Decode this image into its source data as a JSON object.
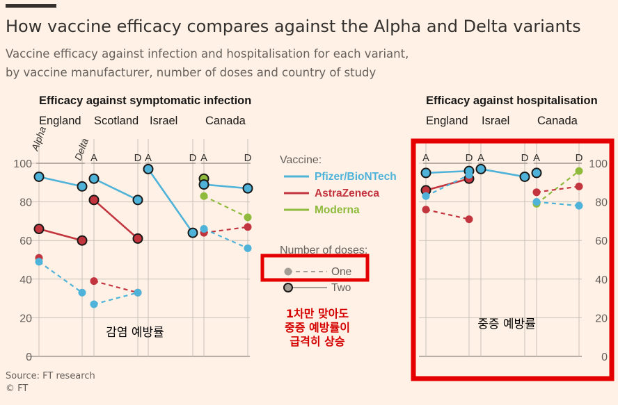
{
  "title": "How vaccine efficacy compares against the Alpha and Delta variants",
  "subtitle_line1": "Vaccine efficacy against infection and hospitalisation for each variant,",
  "subtitle_line2": "by vaccine manufacturer, number of doses and country of study",
  "source": "Source: FT research",
  "copyright": "© FT",
  "overlay": {
    "infection_note": "감염 예방률",
    "center_note_lines": [
      "1차만 맞아도",
      "중증 예방률이",
      "급격히 상승"
    ],
    "hosp_note": "중증 예방률",
    "box_color": "#e50000",
    "note_color": "#d40000"
  },
  "colors": {
    "pfizer": "#4fb3d9",
    "astrazeneca": "#c2343e",
    "moderna": "#8fba3d",
    "one_dose_marker": "#a59e97",
    "grid": "#c9c1b8"
  },
  "chart_data": [
    {
      "type": "line",
      "title": "Efficacy against symptomatic infection",
      "ylim": [
        0,
        100
      ],
      "yticks": [
        0,
        20,
        40,
        60,
        80,
        100
      ],
      "panels": [
        {
          "country": "England",
          "x_labels": [
            "Alpha",
            "Delta"
          ],
          "x_label_style": "rotated",
          "series": [
            {
              "vaccine": "Pfizer/BioNTech",
              "doses": "Two",
              "values": [
                93,
                88
              ]
            },
            {
              "vaccine": "AstraZeneca",
              "doses": "Two",
              "values": [
                66,
                60
              ]
            },
            {
              "vaccine": "AstraZeneca",
              "doses": "One",
              "values": [
                51,
                null
              ]
            },
            {
              "vaccine": "Pfizer/BioNTech",
              "doses": "One",
              "values": [
                49,
                33
              ]
            }
          ]
        },
        {
          "country": "Scotland",
          "x_labels": [
            "A",
            "D"
          ],
          "series": [
            {
              "vaccine": "Pfizer/BioNTech",
              "doses": "Two",
              "values": [
                92,
                81
              ]
            },
            {
              "vaccine": "AstraZeneca",
              "doses": "Two",
              "values": [
                81,
                61
              ]
            },
            {
              "vaccine": "AstraZeneca",
              "doses": "One",
              "values": [
                39,
                33
              ]
            },
            {
              "vaccine": "Pfizer/BioNTech",
              "doses": "One",
              "values": [
                27,
                33
              ]
            }
          ]
        },
        {
          "country": "Israel",
          "x_labels": [
            "A",
            "D"
          ],
          "series": [
            {
              "vaccine": "Pfizer/BioNTech",
              "doses": "Two",
              "values": [
                97,
                64
              ]
            }
          ]
        },
        {
          "country": "Canada",
          "x_labels": [
            "A",
            "D"
          ],
          "series": [
            {
              "vaccine": "Moderna",
              "doses": "Two",
              "values": [
                92,
                null
              ]
            },
            {
              "vaccine": "Pfizer/BioNTech",
              "doses": "Two",
              "values": [
                89,
                87
              ]
            },
            {
              "vaccine": "Moderna",
              "doses": "One",
              "values": [
                83,
                72
              ]
            },
            {
              "vaccine": "AstraZeneca",
              "doses": "One",
              "values": [
                64,
                67
              ]
            },
            {
              "vaccine": "Pfizer/BioNTech",
              "doses": "One",
              "values": [
                66,
                56
              ]
            }
          ]
        }
      ]
    },
    {
      "type": "line",
      "title": "Efficacy against hospitalisation",
      "ylim": [
        0,
        100
      ],
      "yticks": [
        0,
        20,
        40,
        60,
        80,
        100
      ],
      "panels": [
        {
          "country": "England",
          "x_labels": [
            "A",
            "D"
          ],
          "series": [
            {
              "vaccine": "Pfizer/BioNTech",
              "doses": "Two",
              "values": [
                95,
                96
              ]
            },
            {
              "vaccine": "AstraZeneca",
              "doses": "Two",
              "values": [
                86,
                92
              ]
            },
            {
              "vaccine": "Pfizer/BioNTech",
              "doses": "One",
              "values": [
                83,
                94
              ]
            },
            {
              "vaccine": "AstraZeneca",
              "doses": "One",
              "values": [
                76,
                71
              ]
            }
          ]
        },
        {
          "country": "Israel",
          "x_labels": [
            "A",
            "D"
          ],
          "series": [
            {
              "vaccine": "Pfizer/BioNTech",
              "doses": "Two",
              "values": [
                97,
                93
              ]
            }
          ]
        },
        {
          "country": "Canada",
          "x_labels": [
            "A",
            "D"
          ],
          "series": [
            {
              "vaccine": "Pfizer/BioNTech",
              "doses": "Two",
              "values": [
                95,
                null
              ]
            },
            {
              "vaccine": "Moderna",
              "doses": "One",
              "values": [
                79,
                96
              ]
            },
            {
              "vaccine": "AstraZeneca",
              "doses": "One",
              "values": [
                85,
                88
              ]
            },
            {
              "vaccine": "Pfizer/BioNTech",
              "doses": "One",
              "values": [
                80,
                78
              ]
            }
          ]
        }
      ]
    }
  ],
  "legend": {
    "vaccine_title": "Vaccine:",
    "vaccines": [
      {
        "key": "pfizer",
        "label": "Pfizer/BioNTech"
      },
      {
        "key": "astrazeneca",
        "label": "AstraZeneca"
      },
      {
        "key": "moderna",
        "label": "Moderna"
      }
    ],
    "doses_title": "Number of doses:",
    "doses": [
      {
        "key": "one",
        "label": "One"
      },
      {
        "key": "two",
        "label": "Two"
      }
    ]
  }
}
